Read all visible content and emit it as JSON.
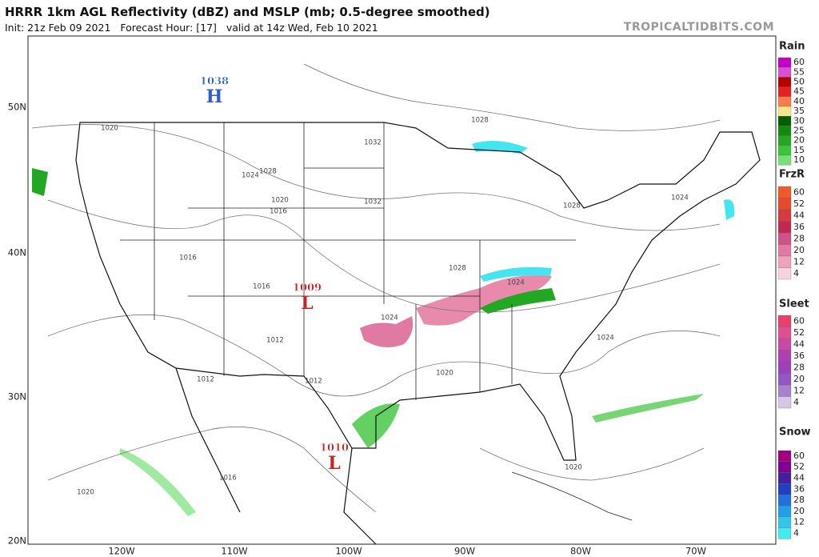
{
  "header": {
    "title": "HRRR 1km AGL Reflectivity (dBZ) and MSLP (mb; 0.5-degree smoothed)",
    "subtitle": "Init: 21z Feb 09 2021   Forecast Hour: [17]   valid at 14z Wed, Feb 10 2021",
    "brand": "TROPICALTIDBITS.COM"
  },
  "map": {
    "lat_labels": [
      "50N",
      "40N",
      "30N",
      "20N"
    ],
    "lon_labels": [
      "120W",
      "110W",
      "100W",
      "90W",
      "80W",
      "70W"
    ],
    "pressure_centers": [
      {
        "value": "1038",
        "symbol": "H"
      },
      {
        "value": "1009",
        "symbol": "L"
      },
      {
        "value": "1010",
        "symbol": "L"
      }
    ],
    "isobar_labels": [
      "1020",
      "1032",
      "1024",
      "1028",
      "1020",
      "1016",
      "1032",
      "1016",
      "1016",
      "1028",
      "1024",
      "1024",
      "1012",
      "1012",
      "1012",
      "1020",
      "1024",
      "1028",
      "1028",
      "1024",
      "1016",
      "1020",
      "1020"
    ]
  },
  "legends": [
    {
      "title": "Rain",
      "labels": [
        "60",
        "55",
        "50",
        "45",
        "40",
        "35",
        "30",
        "25",
        "20",
        "15",
        "10"
      ],
      "colors": [
        "#c400c8",
        "#d850d8",
        "#b80000",
        "#e82020",
        "#ff7a4a",
        "#f6e68a",
        "#005e00",
        "#108a10",
        "#22a822",
        "#3cc43c",
        "#78e078"
      ]
    },
    {
      "title": "FrzR",
      "labels": [
        "60",
        "52",
        "44",
        "36",
        "28",
        "20",
        "12",
        "4"
      ],
      "colors": [
        "#f05a28",
        "#e8482c",
        "#d63a3e",
        "#c42850",
        "#d0508a",
        "#e07aa2",
        "#eea2bc",
        "#f8d2e2"
      ]
    },
    {
      "title": "Sleet",
      "labels": [
        "60",
        "52",
        "44",
        "36",
        "28",
        "20",
        "12",
        "4"
      ],
      "colors": [
        "#e84068",
        "#e05090",
        "#c848a4",
        "#b040b2",
        "#9c40bc",
        "#9456c2",
        "#a880cc",
        "#d6c8e4"
      ]
    },
    {
      "title": "Snow",
      "labels": [
        "60",
        "52",
        "44",
        "36",
        "28",
        "20",
        "12",
        "4"
      ],
      "colors": [
        "#a0007c",
        "#800094",
        "#40209c",
        "#2040c4",
        "#2070e0",
        "#20a0ea",
        "#30c8ea",
        "#44eaf2"
      ]
    }
  ]
}
